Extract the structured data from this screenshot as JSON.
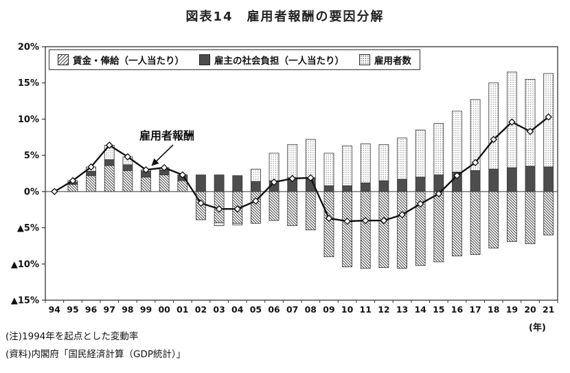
{
  "page": {
    "title": "図表14　雇用者報酬の要因分解",
    "x_unit_label": "(年)",
    "notes": [
      "(注)1994年を起点とした変動率",
      "(資料)内閣府「国民経済計算（GDP統計）」"
    ]
  },
  "chart_data": {
    "type": "bar",
    "subtype": "stacked-bar-with-line",
    "title": "図表14　雇用者報酬の要因分解",
    "stacked": true,
    "grid": false,
    "legend_position": "top-inside",
    "annotation": {
      "text": "雇用者報酬",
      "points_to": "line near 1998-1999"
    },
    "ylim": [
      -15,
      20
    ],
    "ytick_values": [
      20,
      15,
      10,
      5,
      0,
      -5,
      -10,
      -15
    ],
    "ytick_labels": [
      "20%",
      "15%",
      "10%",
      "5%",
      "0%",
      "▲5%",
      "▲10%",
      "▲15%"
    ],
    "negative_mark": "▲",
    "categories": [
      "94",
      "95",
      "96",
      "97",
      "98",
      "99",
      "00",
      "01",
      "02",
      "03",
      "04",
      "05",
      "06",
      "07",
      "08",
      "09",
      "10",
      "11",
      "12",
      "13",
      "14",
      "15",
      "16",
      "17",
      "18",
      "19",
      "20",
      "21"
    ],
    "series": [
      {
        "name": "賃金・俸給（一人当たり）",
        "type": "bar",
        "style": "hatch",
        "values": [
          0,
          1.0,
          2.2,
          3.6,
          2.9,
          2.0,
          2.3,
          1.5,
          -3.9,
          -4.3,
          -4.4,
          -4.4,
          -4.0,
          -4.7,
          -5.3,
          -9.0,
          -10.4,
          -10.6,
          -10.5,
          -10.6,
          -10.2,
          -9.7,
          -8.9,
          -8.7,
          -7.8,
          -6.9,
          -7.2,
          -6.0
        ]
      },
      {
        "name": "雇主の社会負担（一人当たり）",
        "type": "bar",
        "style": "solid-dark",
        "values": [
          0,
          0.3,
          0.6,
          0.8,
          0.8,
          0.8,
          0.7,
          0.7,
          2.3,
          2.3,
          2.2,
          1.4,
          1.5,
          1.9,
          1.9,
          0.8,
          0.8,
          1.2,
          1.5,
          1.7,
          2.0,
          2.3,
          2.7,
          2.9,
          3.1,
          3.3,
          3.5,
          3.4
        ]
      },
      {
        "name": "雇用者数",
        "type": "bar",
        "style": "dots",
        "values": [
          0,
          0.2,
          0.6,
          2.0,
          1.1,
          0.2,
          0.3,
          0.1,
          0.0,
          -0.4,
          -0.2,
          1.7,
          3.8,
          4.6,
          5.3,
          4.5,
          5.5,
          5.4,
          5.0,
          5.7,
          6.5,
          7.1,
          8.4,
          9.8,
          11.9,
          13.2,
          12.0,
          12.9
        ]
      },
      {
        "name": "雇用者報酬",
        "type": "line",
        "values": [
          0,
          1.5,
          3.4,
          6.4,
          4.8,
          3.0,
          3.3,
          2.3,
          -1.6,
          -2.4,
          -2.4,
          -1.3,
          1.3,
          1.8,
          1.9,
          -3.7,
          -4.1,
          -4.0,
          -4.0,
          -3.2,
          -1.7,
          -0.3,
          2.2,
          4.0,
          7.2,
          9.6,
          8.3,
          10.3
        ]
      }
    ],
    "colors": {
      "line": "#111111",
      "bar_solid": "#4d4d4d",
      "pattern_fg": "#444444",
      "axis": "#333333"
    }
  }
}
